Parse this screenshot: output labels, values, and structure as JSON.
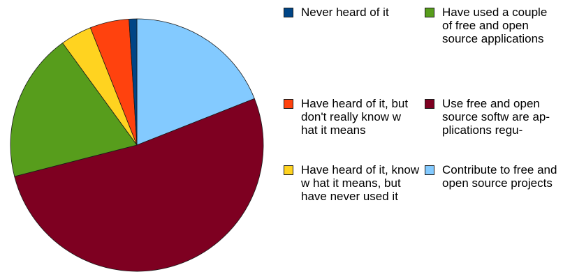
{
  "chart_data": {
    "type": "pie",
    "title": "",
    "start_angle_deg": 0,
    "direction": "clockwise",
    "slices": [
      {
        "name": "Contribute to free and open source projects",
        "value": 19,
        "color": "#83caff"
      },
      {
        "name": "Use free and open source softw are ap-plications regu-",
        "value": 52,
        "color": "#7e0021"
      },
      {
        "name": "Have used a couple of free and open source applications",
        "value": 19,
        "color": "#579d1c"
      },
      {
        "name": "Have heard of it, know w hat it means, but have never used it",
        "value": 4,
        "color": "#ffd320"
      },
      {
        "name": "Have heard of it, but don't really know w hat it means",
        "value": 5,
        "color": "#ff420e"
      },
      {
        "name": "Never heard of it",
        "value": 1,
        "color": "#004586"
      }
    ],
    "legend_placement": "right"
  },
  "legend": [
    {
      "label": "Never heard of it",
      "color": "#004586"
    },
    {
      "label": "Have used a couple of free and open source applications",
      "color": "#579d1c"
    },
    {
      "label": "Have heard of it, but don't really know w hat it means",
      "color": "#ff420e"
    },
    {
      "label": "Use free and open source softw are ap-plications regu-",
      "color": "#7e0021"
    },
    {
      "label": "Have heard of it, know w hat it means, but have never used it",
      "color": "#ffd320"
    },
    {
      "label": "Contribute to free and open source projects",
      "color": "#83caff"
    }
  ]
}
